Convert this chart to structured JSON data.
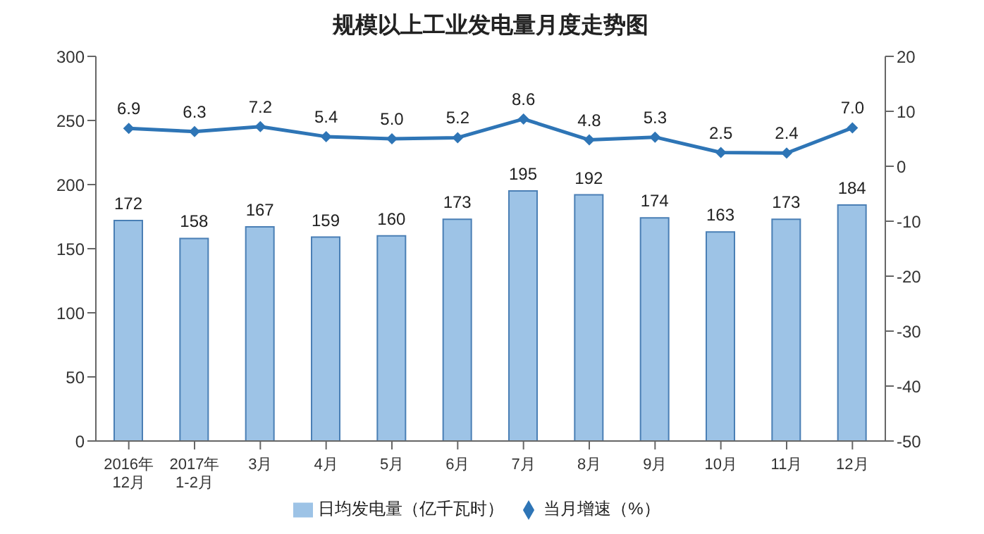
{
  "chart_data": {
    "type": "bar",
    "title": "规模以上工业发电量月度走势图",
    "categories": [
      "2016年\n12月",
      "2017年\n1-2月",
      "3月",
      "4月",
      "5月",
      "6月",
      "7月",
      "8月",
      "9月",
      "10月",
      "11月",
      "12月"
    ],
    "series": [
      {
        "name": "日均发电量（亿千瓦时）",
        "color": "#9dc3e6",
        "values": [
          172,
          158,
          167,
          159,
          160,
          173,
          195,
          192,
          174,
          163,
          173,
          184
        ]
      },
      {
        "name": "当月增速（%）",
        "type": "line",
        "axis": "y2",
        "color": "#2e75b6",
        "marker": "diamond",
        "values": [
          6.9,
          6.3,
          7.2,
          5.4,
          5.0,
          5.2,
          8.6,
          4.8,
          5.3,
          2.5,
          2.4,
          7.0
        ],
        "value_labels": [
          "6.9",
          "6.3",
          "7.2",
          "5.4",
          "5.0",
          "5.2",
          "8.6",
          "4.8",
          "5.3",
          "2.5",
          "2.4",
          "7.0"
        ]
      }
    ],
    "ylim": [
      0,
      300
    ],
    "yticks": [
      0,
      50,
      100,
      150,
      200,
      250,
      300
    ],
    "y2lim": [
      -50,
      20
    ],
    "y2ticks": [
      -50,
      -40,
      -30,
      -20,
      -10,
      0,
      10,
      20
    ],
    "data_labels": true,
    "legend": "bottom",
    "grid": false
  }
}
